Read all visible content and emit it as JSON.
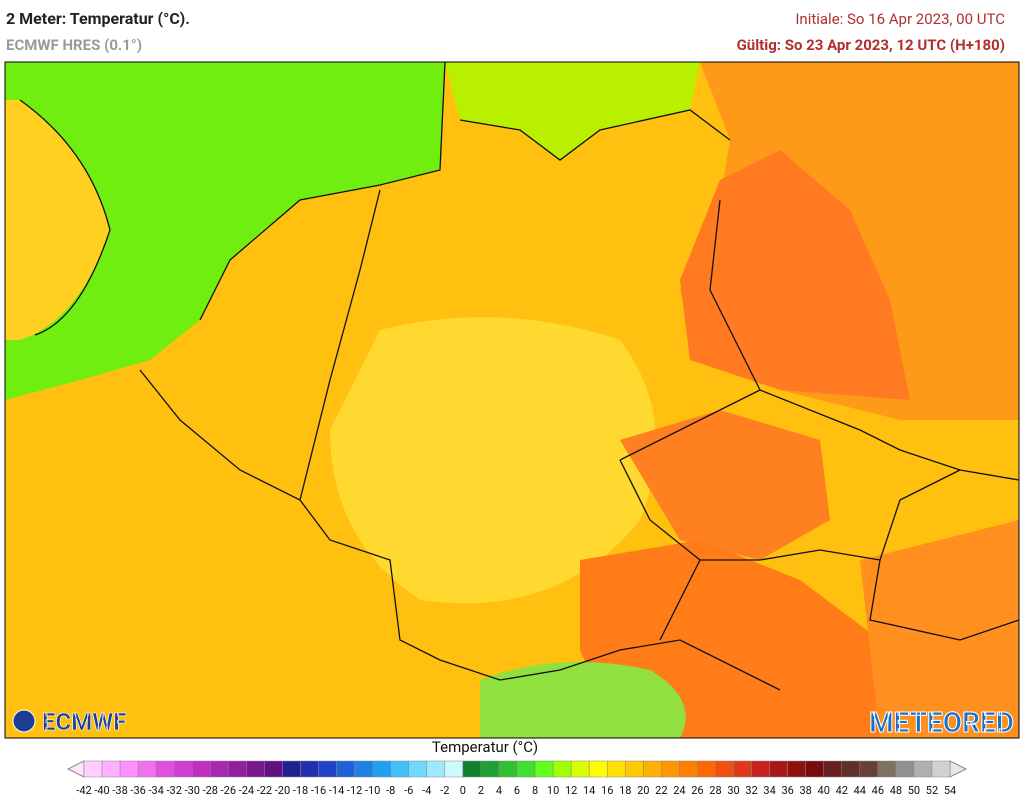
{
  "header": {
    "title": "2 Meter: Temperatur (°C).",
    "subtitle": "ECMWF HRES (0.1°)",
    "initial": "Initiale: So 16 Apr 2023, 00 UTC",
    "valid": "Gültig: So 23 Apr 2023, 12 UTC (H+180)"
  },
  "logos": {
    "left": "ECMWF",
    "right": "METEORED"
  },
  "legend": {
    "label": "Temperatur (°C)",
    "ticks": [
      -42,
      -40,
      -38,
      -36,
      -34,
      -32,
      -30,
      -28,
      -26,
      -24,
      -22,
      -20,
      -18,
      -16,
      -14,
      -12,
      -10,
      -8,
      -6,
      -4,
      -2,
      0,
      2,
      4,
      6,
      8,
      10,
      12,
      14,
      16,
      18,
      20,
      22,
      24,
      26,
      28,
      30,
      32,
      34,
      36,
      38,
      40,
      42,
      44,
      46,
      48,
      50,
      52,
      54
    ],
    "colors": [
      "#ffd0ff",
      "#ffb0ff",
      "#ff90ff",
      "#f070f0",
      "#e050e0",
      "#d040d0",
      "#c030c0",
      "#a828b0",
      "#9020a0",
      "#781890",
      "#601080",
      "#202090",
      "#2030b0",
      "#2040c8",
      "#2060d8",
      "#2080e8",
      "#20a0f0",
      "#40c0f8",
      "#70d8ff",
      "#a0e8ff",
      "#d0f8ff",
      "#108030",
      "#20a030",
      "#30c030",
      "#40e030",
      "#60ff20",
      "#a0ff00",
      "#d8ff00",
      "#ffff00",
      "#ffe000",
      "#ffc800",
      "#ffb000",
      "#ff9800",
      "#ff8000",
      "#ff6800",
      "#f05010",
      "#e03818",
      "#c82020",
      "#a81818",
      "#901010",
      "#780c0c",
      "#682020",
      "#603028",
      "#684038",
      "#807060",
      "#909090",
      "#b0b0b0",
      "#d0d0d0"
    ]
  }
}
